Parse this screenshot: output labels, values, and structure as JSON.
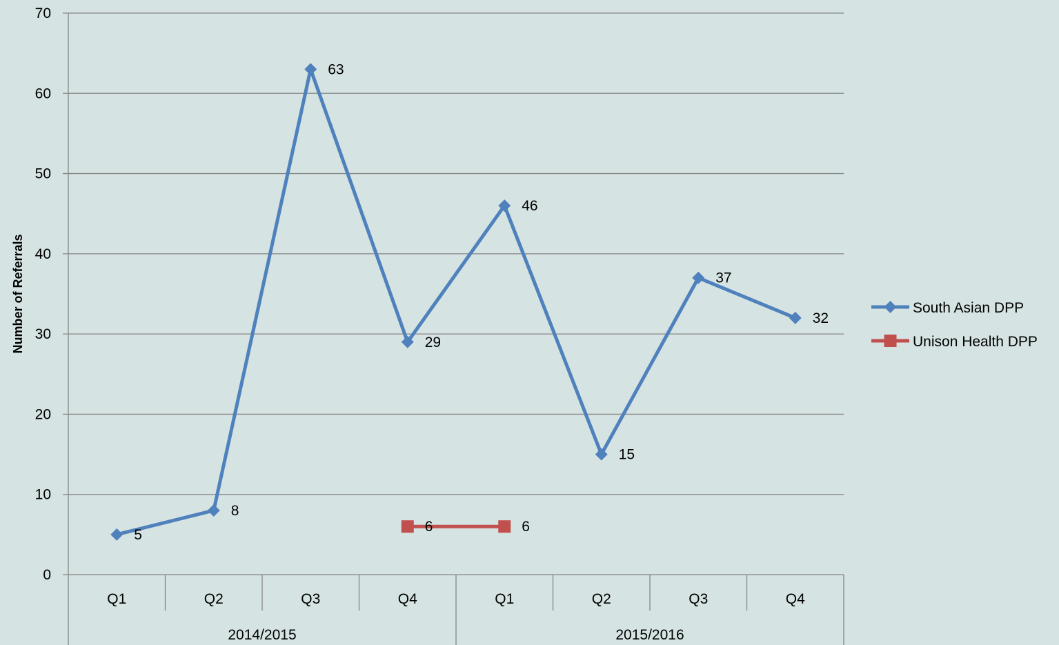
{
  "chart_data": {
    "type": "line",
    "title": "",
    "xlabel": "",
    "ylabel": "Number of Referrals",
    "ylim": [
      0,
      70
    ],
    "ytick_step": 10,
    "grid": "horizontal",
    "legend_position": "right",
    "categories": [
      "Q1",
      "Q2",
      "Q3",
      "Q4",
      "Q1",
      "Q2",
      "Q3",
      "Q4"
    ],
    "category_groups": [
      {
        "label": "2014/2015",
        "span": 4
      },
      {
        "label": "2015/2016",
        "span": 4
      }
    ],
    "series": [
      {
        "name": "South Asian DPP",
        "color": "#4f81bd",
        "marker": "diamond",
        "values": [
          5,
          8,
          63,
          29,
          46,
          15,
          37,
          32
        ]
      },
      {
        "name": "Unison Health DPP",
        "color": "#c0504d",
        "marker": "square",
        "values": [
          null,
          null,
          null,
          6,
          6,
          null,
          null,
          null
        ]
      }
    ]
  }
}
